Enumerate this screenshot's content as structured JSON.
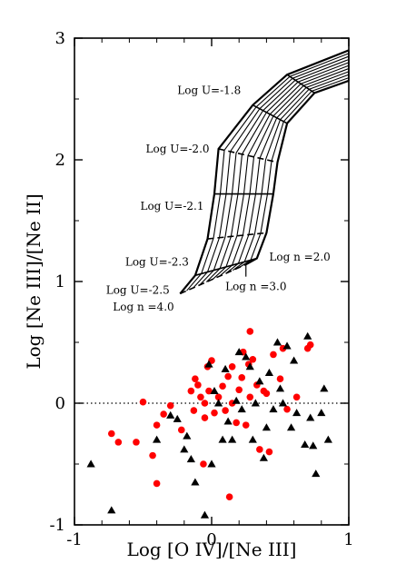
{
  "chart_data": {
    "type": "scatter",
    "xlabel": "Log [O IV]/[Ne III]",
    "ylabel": "Log [Ne III]/[Ne II]",
    "xlim": [
      -1,
      1
    ],
    "ylim": [
      -1,
      3
    ],
    "xticks": [
      -1,
      0,
      1
    ],
    "yticks": [
      -1,
      0,
      1,
      2,
      3
    ],
    "xtick_labels": [
      "-1",
      "0",
      "1"
    ],
    "ytick_labels": [
      "-1",
      "0",
      "1",
      "2",
      "3"
    ],
    "reference_line": {
      "y": 0,
      "style": "dotted"
    },
    "grid": false,
    "model_grid": {
      "labels": [
        {
          "text": "Log U=-1.8",
          "x": -0.25,
          "y": 2.54
        },
        {
          "text": "Log U=-2.0",
          "x": -0.48,
          "y": 2.06
        },
        {
          "text": "Log U=-2.1",
          "x": -0.52,
          "y": 1.59
        },
        {
          "text": "Log U=-2.3",
          "x": -0.63,
          "y": 1.13
        },
        {
          "text": "Log U=-2.5",
          "x": -0.77,
          "y": 0.9
        },
        {
          "text": "Log n =4.0",
          "x": -0.72,
          "y": 0.76
        },
        {
          "text": "Log n =2.0",
          "x": 0.42,
          "y": 1.17
        },
        {
          "text": "Log n =3.0",
          "x": 0.1,
          "y": 0.93
        }
      ],
      "density_lines": [
        [
          [
            -0.23,
            0.9
          ],
          [
            -0.12,
            1.05
          ],
          [
            -0.03,
            1.35
          ],
          [
            0.02,
            1.72
          ],
          [
            0.05,
            2.09
          ],
          [
            0.3,
            2.45
          ],
          [
            0.55,
            2.7
          ],
          [
            1.0,
            2.9
          ]
        ],
        [
          [
            0.25,
            1.14
          ],
          [
            0.33,
            1.19
          ],
          [
            0.4,
            1.4
          ],
          [
            0.45,
            1.72
          ],
          [
            0.48,
            1.98
          ],
          [
            0.55,
            2.3
          ],
          [
            0.75,
            2.55
          ],
          [
            1.0,
            2.65
          ]
        ]
      ],
      "ionization_lines": [
        [
          [
            0.05,
            2.09
          ],
          [
            0.46,
            2.09
          ]
        ],
        [
          [
            -0.03,
            1.35
          ],
          [
            0.4,
            1.4
          ]
        ],
        [
          [
            -0.23,
            0.9
          ],
          [
            0.28,
            1.14
          ]
        ]
      ]
    },
    "series": [
      {
        "marker": "circle",
        "color": "#ff0000",
        "points": [
          [
            -0.73,
            -0.25
          ],
          [
            -0.68,
            -0.32
          ],
          [
            -0.55,
            -0.32
          ],
          [
            -0.5,
            0.01
          ],
          [
            -0.43,
            -0.43
          ],
          [
            -0.4,
            -0.66
          ],
          [
            -0.4,
            -0.18
          ],
          [
            -0.35,
            -0.09
          ],
          [
            -0.3,
            -0.02
          ],
          [
            -0.22,
            -0.22
          ],
          [
            -0.15,
            0.1
          ],
          [
            -0.13,
            -0.06
          ],
          [
            -0.12,
            0.2
          ],
          [
            -0.1,
            0.15
          ],
          [
            -0.08,
            0.05
          ],
          [
            -0.06,
            -0.5
          ],
          [
            -0.05,
            0.0
          ],
          [
            -0.05,
            -0.12
          ],
          [
            -0.03,
            0.3
          ],
          [
            -0.02,
            0.1
          ],
          [
            0.0,
            0.35
          ],
          [
            0.02,
            -0.08
          ],
          [
            0.05,
            0.05
          ],
          [
            0.08,
            0.14
          ],
          [
            0.1,
            -0.06
          ],
          [
            0.12,
            0.22
          ],
          [
            0.13,
            -0.77
          ],
          [
            0.15,
            0.3
          ],
          [
            0.15,
            0.0
          ],
          [
            0.18,
            -0.16
          ],
          [
            0.2,
            0.11
          ],
          [
            0.22,
            0.21
          ],
          [
            0.23,
            0.42
          ],
          [
            0.25,
            -0.18
          ],
          [
            0.27,
            0.32
          ],
          [
            0.28,
            0.59
          ],
          [
            0.28,
            0.05
          ],
          [
            0.3,
            0.36
          ],
          [
            0.33,
            0.15
          ],
          [
            0.35,
            -0.38
          ],
          [
            0.38,
            0.1
          ],
          [
            0.4,
            0.08
          ],
          [
            0.42,
            -0.4
          ],
          [
            0.45,
            0.4
          ],
          [
            0.5,
            0.2
          ],
          [
            0.52,
            0.45
          ],
          [
            0.55,
            -0.05
          ],
          [
            0.62,
            0.05
          ],
          [
            0.7,
            0.45
          ],
          [
            0.72,
            0.48
          ]
        ]
      },
      {
        "marker": "triangle",
        "color": "#000000",
        "points": [
          [
            -0.88,
            -0.5
          ],
          [
            -0.73,
            -0.88
          ],
          [
            -0.4,
            -0.3
          ],
          [
            -0.3,
            -0.1
          ],
          [
            -0.25,
            -0.13
          ],
          [
            -0.2,
            -0.38
          ],
          [
            -0.18,
            -0.27
          ],
          [
            -0.15,
            -0.46
          ],
          [
            -0.12,
            -0.65
          ],
          [
            -0.05,
            -0.92
          ],
          [
            -0.02,
            0.32
          ],
          [
            0.0,
            -0.5
          ],
          [
            0.02,
            0.1
          ],
          [
            0.05,
            0.0
          ],
          [
            0.08,
            -0.3
          ],
          [
            0.1,
            0.28
          ],
          [
            0.12,
            -0.15
          ],
          [
            0.15,
            -0.3
          ],
          [
            0.18,
            0.02
          ],
          [
            0.2,
            0.42
          ],
          [
            0.22,
            -0.05
          ],
          [
            0.25,
            0.38
          ],
          [
            0.28,
            0.3
          ],
          [
            0.3,
            -0.3
          ],
          [
            0.32,
            0.0
          ],
          [
            0.35,
            0.18
          ],
          [
            0.38,
            -0.45
          ],
          [
            0.4,
            -0.2
          ],
          [
            0.42,
            0.25
          ],
          [
            0.45,
            -0.05
          ],
          [
            0.48,
            0.5
          ],
          [
            0.5,
            0.12
          ],
          [
            0.52,
            0.0
          ],
          [
            0.55,
            0.47
          ],
          [
            0.58,
            -0.2
          ],
          [
            0.6,
            0.35
          ],
          [
            0.62,
            -0.08
          ],
          [
            0.68,
            -0.34
          ],
          [
            0.7,
            0.55
          ],
          [
            0.72,
            -0.12
          ],
          [
            0.74,
            -0.35
          ],
          [
            0.76,
            -0.58
          ],
          [
            0.8,
            -0.08
          ],
          [
            0.82,
            0.12
          ],
          [
            0.85,
            -0.3
          ]
        ]
      }
    ]
  }
}
